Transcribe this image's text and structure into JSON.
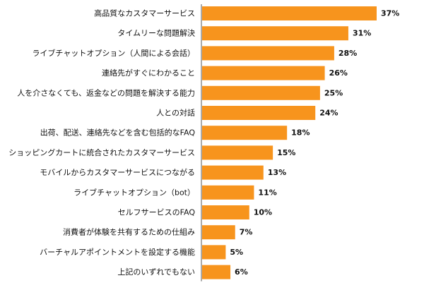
{
  "chart_data": {
    "type": "bar",
    "orientation": "horizontal",
    "title": "",
    "xlabel": "",
    "ylabel": "",
    "value_suffix": "%",
    "xlim": [
      0,
      37
    ],
    "grid": false,
    "bar_color": "#F7941D",
    "axis_color": "#555555",
    "categories": [
      "高品質なカスタマーサービス",
      "タイムリーな問題解決",
      "ライブチャットオプション（人間による会話）",
      "連絡先がすぐにわかること",
      "人を介さなくても、返金などの問題を解決する能力",
      "人との対話",
      "出荷、配送、連絡先などを含む包括的なFAQ",
      "ショッピングカートに統合されたカスタマーサービス",
      "モバイルからカスタマーサービスにつながる",
      "ライブチャットオプション（bot）",
      "セルフサービスのFAQ",
      "消費者が体験を共有するための仕組み",
      "バーチャルアポイントメントを設定する機能",
      "上記のいずれでもない"
    ],
    "values": [
      37,
      31,
      28,
      26,
      25,
      24,
      18,
      15,
      13,
      11,
      10,
      7,
      5,
      6
    ]
  }
}
